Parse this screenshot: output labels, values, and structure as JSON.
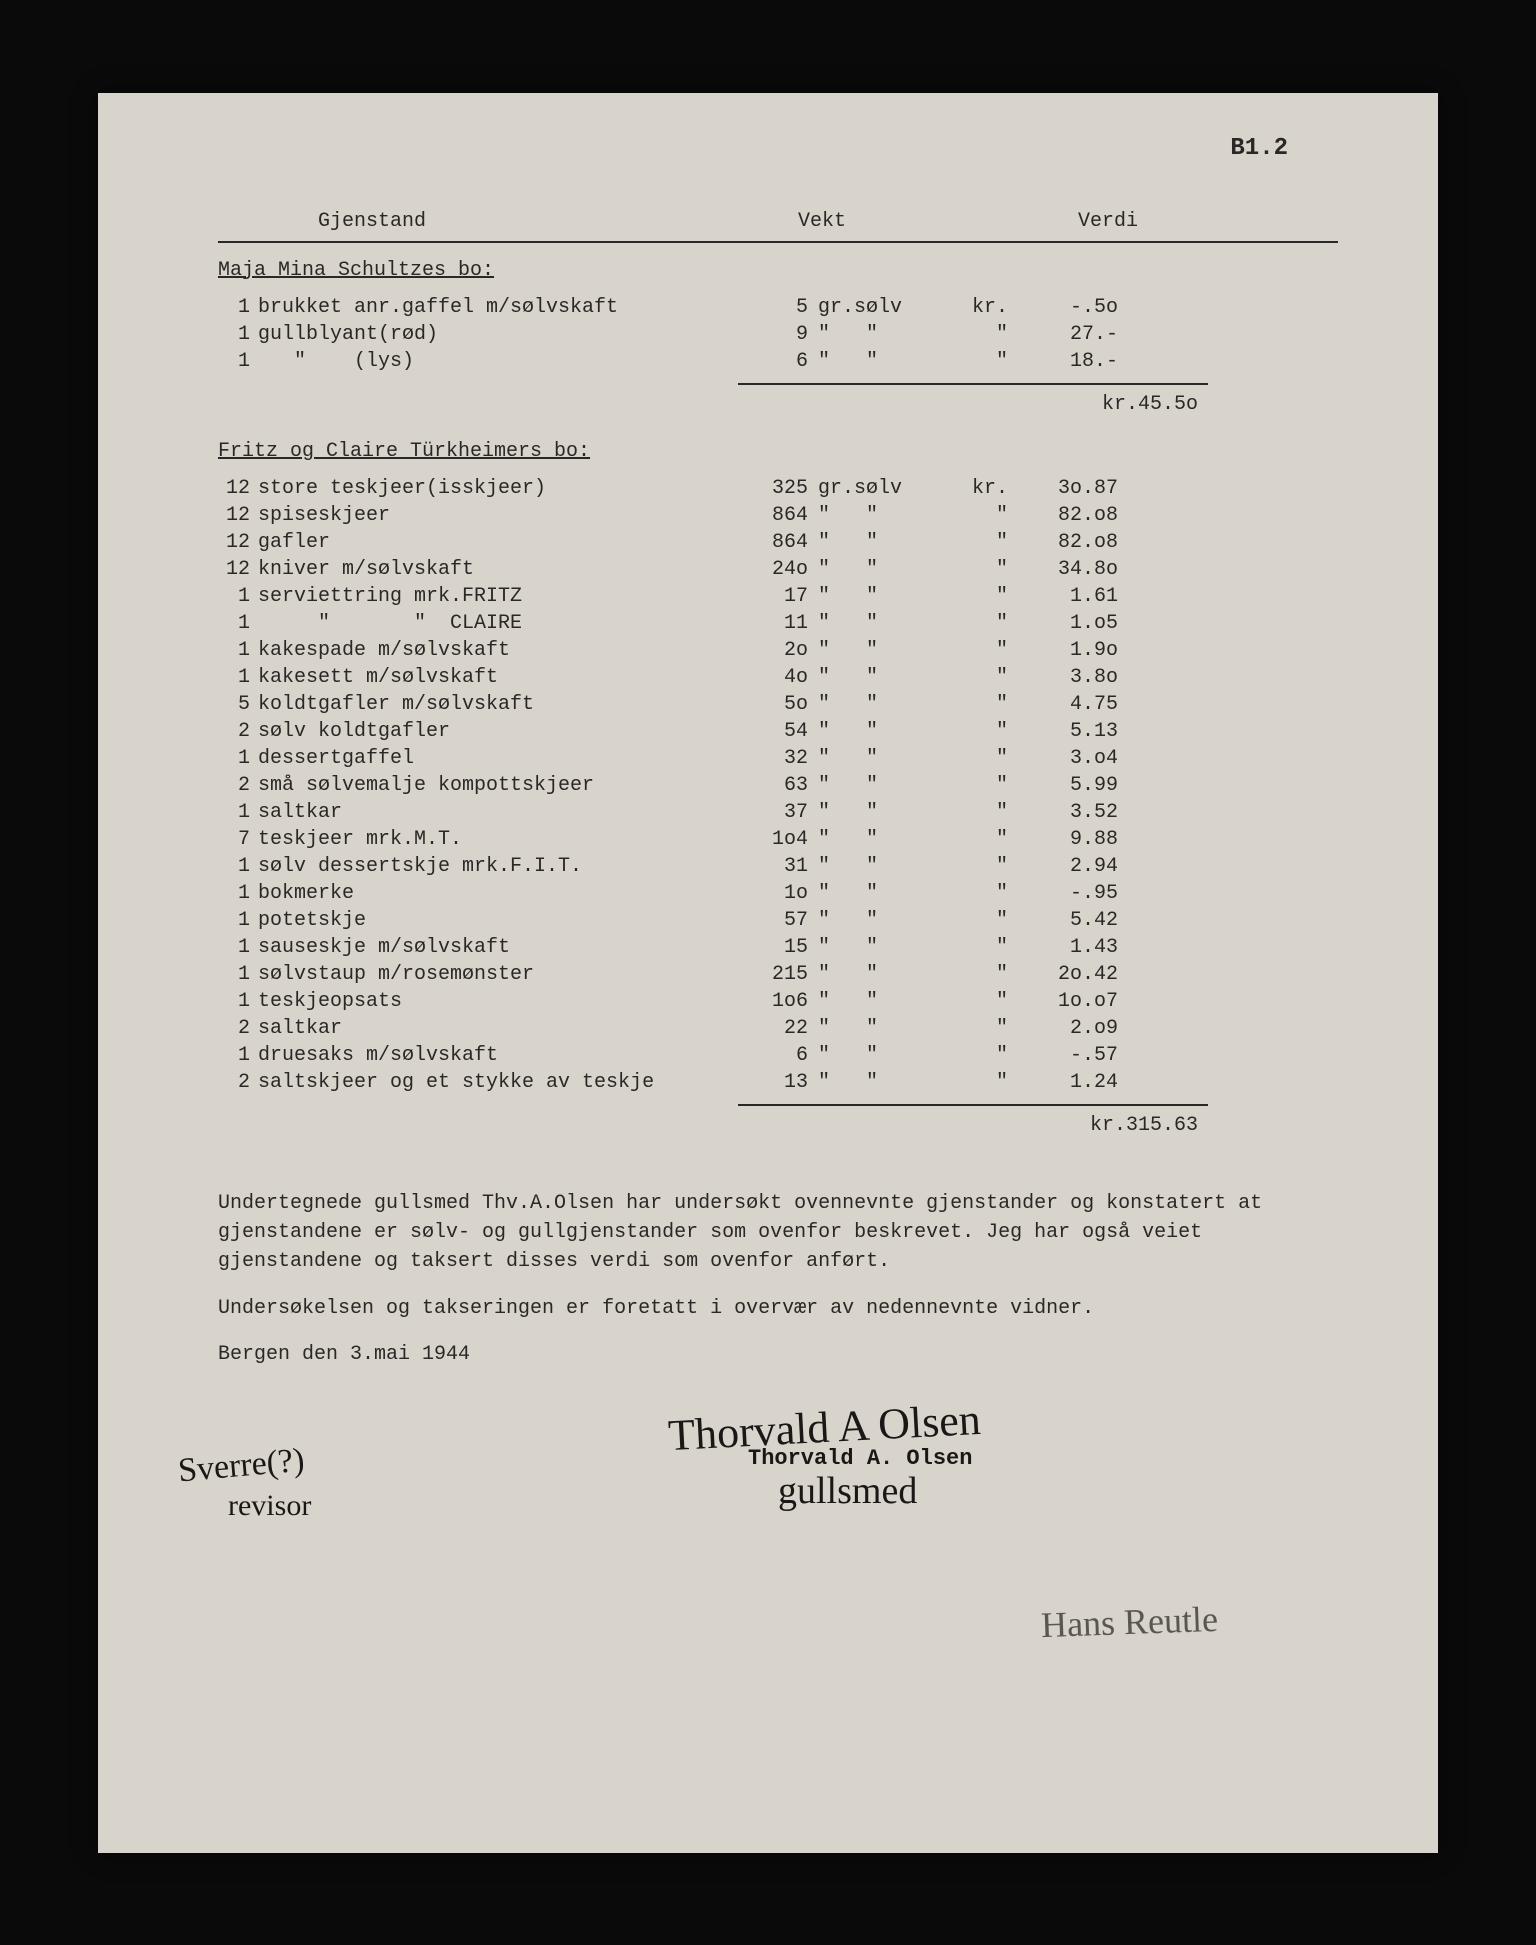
{
  "page_number": "B1.2",
  "headers": {
    "gjenstand": "Gjenstand",
    "vekt": "Vekt",
    "verdi": "Verdi"
  },
  "section1": {
    "title": "Maja Mina Schultzes bo:",
    "rows": [
      {
        "qty": "1",
        "desc": "brukket anr.gaffel m/sølvskaft",
        "wt": "5",
        "unit": "gr.sølv",
        "cur": "kr.",
        "val": "-.5o"
      },
      {
        "qty": "1",
        "desc": "gullblyant(rød)",
        "wt": "9",
        "unit": "\"   \"",
        "cur": "\"",
        "val": "27.-"
      },
      {
        "qty": "1",
        "desc": "   \"    (lys)",
        "wt": "6",
        "unit": "\"   \"",
        "cur": "\"",
        "val": "18.-"
      }
    ],
    "subtotal": "kr.45.5o"
  },
  "section2": {
    "title": "Fritz og Claire Türkheimers bo:",
    "rows": [
      {
        "qty": "12",
        "desc": "store teskjeer(isskjeer)",
        "wt": "325",
        "unit": "gr.sølv",
        "cur": "kr.",
        "val": "3o.87"
      },
      {
        "qty": "12",
        "desc": "spiseskjeer",
        "wt": "864",
        "unit": "\"   \"",
        "cur": "\"",
        "val": "82.o8"
      },
      {
        "qty": "12",
        "desc": "gafler",
        "wt": "864",
        "unit": "\"   \"",
        "cur": "\"",
        "val": "82.o8"
      },
      {
        "qty": "12",
        "desc": "kniver m/sølvskaft",
        "wt": "24o",
        "unit": "\"   \"",
        "cur": "\"",
        "val": "34.8o"
      },
      {
        "qty": "1",
        "desc": "serviettring mrk.FRITZ",
        "wt": "17",
        "unit": "\"   \"",
        "cur": "\"",
        "val": "1.61"
      },
      {
        "qty": "1",
        "desc": "     \"       \"  CLAIRE",
        "wt": "11",
        "unit": "\"   \"",
        "cur": "\"",
        "val": "1.o5"
      },
      {
        "qty": "1",
        "desc": "kakespade m/sølvskaft",
        "wt": "2o",
        "unit": "\"   \"",
        "cur": "\"",
        "val": "1.9o"
      },
      {
        "qty": "1",
        "desc": "kakesett m/sølvskaft",
        "wt": "4o",
        "unit": "\"   \"",
        "cur": "\"",
        "val": "3.8o"
      },
      {
        "qty": "5",
        "desc": "koldtgafler m/sølvskaft",
        "wt": "5o",
        "unit": "\"   \"",
        "cur": "\"",
        "val": "4.75"
      },
      {
        "qty": "2",
        "desc": "sølv koldtgafler",
        "wt": "54",
        "unit": "\"   \"",
        "cur": "\"",
        "val": "5.13"
      },
      {
        "qty": "1",
        "desc": "dessertgaffel",
        "wt": "32",
        "unit": "\"   \"",
        "cur": "\"",
        "val": "3.o4"
      },
      {
        "qty": "2",
        "desc": "små sølvemalje kompottskjeer",
        "wt": "63",
        "unit": "\"   \"",
        "cur": "\"",
        "val": "5.99"
      },
      {
        "qty": "1",
        "desc": "saltkar",
        "wt": "37",
        "unit": "\"   \"",
        "cur": "\"",
        "val": "3.52"
      },
      {
        "qty": "7",
        "desc": "teskjeer mrk.M.T.",
        "wt": "1o4",
        "unit": "\"   \"",
        "cur": "\"",
        "val": "9.88"
      },
      {
        "qty": "1",
        "desc": "sølv dessertskje mrk.F.I.T.",
        "wt": "31",
        "unit": "\"   \"",
        "cur": "\"",
        "val": "2.94"
      },
      {
        "qty": "1",
        "desc": "bokmerke",
        "wt": "1o",
        "unit": "\"   \"",
        "cur": "\"",
        "val": "-.95"
      },
      {
        "qty": "1",
        "desc": "potetskje",
        "wt": "57",
        "unit": "\"   \"",
        "cur": "\"",
        "val": "5.42"
      },
      {
        "qty": "1",
        "desc": "sauseskje m/sølvskaft",
        "wt": "15",
        "unit": "\"   \"",
        "cur": "\"",
        "val": "1.43"
      },
      {
        "qty": "1",
        "desc": "sølvstaup m/rosemønster",
        "wt": "215",
        "unit": "\"   \"",
        "cur": "\"",
        "val": "2o.42"
      },
      {
        "qty": "1",
        "desc": "teskjeopsats",
        "wt": "1o6",
        "unit": "\"   \"",
        "cur": "\"",
        "val": "1o.o7"
      },
      {
        "qty": "2",
        "desc": "saltkar",
        "wt": "22",
        "unit": "\"   \"",
        "cur": "\"",
        "val": "2.o9"
      },
      {
        "qty": "1",
        "desc": "druesaks m/sølvskaft",
        "wt": "6",
        "unit": "\"   \"",
        "cur": "\"",
        "val": "-.57"
      },
      {
        "qty": "2",
        "desc": "saltskjeer og et stykke av teskje",
        "wt": "13",
        "unit": "\"   \"",
        "cur": "\"",
        "val": "1.24"
      }
    ],
    "subtotal": "kr.315.63"
  },
  "para1": "Undertegnede gullsmed Thv.A.Olsen har undersøkt ovennevnte gjenstander og konstatert at gjenstandene er sølv- og gullgjenstander som ovenfor beskrevet. Jeg har også veiet gjenstandene og taksert disses verdi som ovenfor anført.",
  "para2": "Undersøkelsen og takseringen er foretatt i overvær av nedennevnte vidner.",
  "date": "Bergen den 3.mai 1944",
  "sig": {
    "main": "Thorvald A Olsen",
    "stamp": "Thorvald A. Olsen",
    "title": "gullsmed",
    "left1": "Sverre(?)",
    "left2": "revisor",
    "bottom": "Hans Reutle"
  }
}
